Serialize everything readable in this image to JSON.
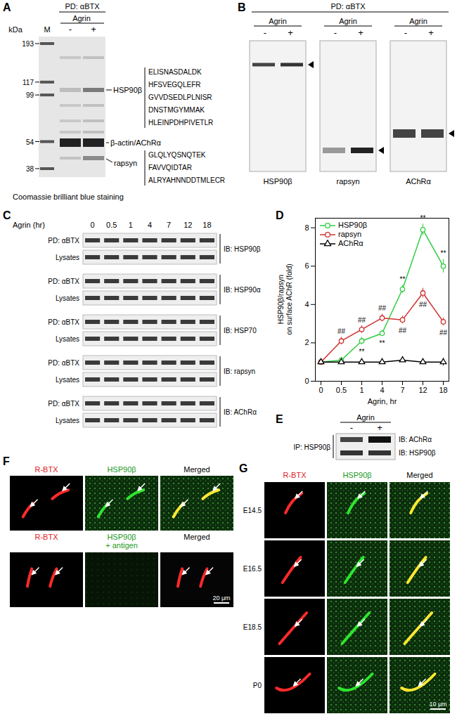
{
  "panels": {
    "A": {
      "letter": "A",
      "header": "PD: αBTX",
      "treatment": "Agrin",
      "mw_label": "kDa",
      "lanes": [
        "M",
        "-",
        "+"
      ],
      "mw_markers": [
        193,
        117,
        99,
        54,
        38
      ],
      "bands": [
        {
          "label": "HSP90β",
          "peptides": [
            "ELISNASDALDK",
            "HFSVEGQLEFR",
            "GVVDSEDLPLNISR",
            "DNSTMGYMMAK",
            "HLEINPDHPIVETLR"
          ]
        },
        {
          "label": "β-actin/AChRα"
        },
        {
          "label": "rapsyn",
          "peptides": [
            "GLQLYQSNQTEK",
            "FAVVQIDTAR",
            "ALRYAHNNDDTMLECR"
          ]
        }
      ],
      "caption": "Coomassie brilliant blue staining"
    },
    "B": {
      "letter": "B",
      "header": "PD: αBTX",
      "blots": [
        {
          "treatment": "Agrin",
          "lanes": [
            "-",
            "+"
          ],
          "label": "HSP90β"
        },
        {
          "treatment": "Agrin",
          "lanes": [
            "-",
            "+"
          ],
          "label": "rapsyn"
        },
        {
          "treatment": "Agrin",
          "lanes": [
            "-",
            "+"
          ],
          "label": "AChRα"
        }
      ]
    },
    "C": {
      "letter": "C",
      "treatment": "Agrin (hr)",
      "timepoints": [
        "0",
        "0.5",
        "1",
        "4",
        "7",
        "12",
        "18"
      ],
      "blots": [
        {
          "ib": "IB: HSP90β",
          "rows": [
            "PD: αBTX",
            "Lysates"
          ]
        },
        {
          "ib": "IB: HSP90α",
          "rows": [
            "PD: αBTX",
            "Lysates"
          ]
        },
        {
          "ib": "IB: HSP70",
          "rows": [
            "PD: αBTX",
            "Lysates"
          ]
        },
        {
          "ib": "IB: rapsyn",
          "rows": [
            "PD: αBTX",
            "Lysates"
          ]
        },
        {
          "ib": "IB: AChRα",
          "rows": [
            "PD: αBTX",
            "Lysates"
          ]
        }
      ]
    },
    "E": {
      "letter": "E",
      "treatment": "Agrin",
      "lanes": [
        "-",
        "+"
      ],
      "ip": "IP: HSP90β",
      "ib": [
        "IB: AChRα",
        "IB: HSP90β"
      ]
    },
    "F": {
      "letter": "F",
      "rows": [
        {
          "labels": [
            "R-BTX",
            "HSP90β",
            "Merged"
          ]
        },
        {
          "labels": [
            "R-BTX",
            "HSP90β\n+ antigen",
            "Merged"
          ]
        }
      ],
      "scale_bar": "20 μm"
    },
    "G": {
      "letter": "G",
      "columns": [
        "R-BTX",
        "HSP90β",
        "Merged"
      ],
      "rows": [
        "E14.5",
        "E16.5",
        "E18.5",
        "P0"
      ],
      "scale_bar": "10 μm"
    }
  },
  "chart_data": {
    "letter": "D",
    "type": "line",
    "xlabel": "Agrin, hr",
    "ylabel": "HSP90β/rapsyn\non surface AChR (fold)",
    "categories": [
      "0",
      "0.5",
      "1",
      "4",
      "7",
      "12",
      "18"
    ],
    "ylim": [
      0,
      8.5
    ],
    "yticks": [
      0,
      2,
      4,
      6,
      8
    ],
    "legend": "top-left",
    "series": [
      {
        "name": "HSP90β",
        "color": "#2ecc40",
        "marker": "circle",
        "values": [
          1,
          1.1,
          2.1,
          2.5,
          4.8,
          7.9,
          6.0
        ],
        "errors": [
          0,
          0.15,
          0.2,
          0.15,
          0.2,
          0.3,
          0.35
        ],
        "significance": [
          null,
          null,
          "**",
          "**",
          "**",
          "**",
          "**"
        ]
      },
      {
        "name": "rapsyn",
        "color": "#d03030",
        "marker": "circle",
        "values": [
          1,
          2.1,
          2.7,
          3.3,
          3.2,
          4.6,
          3.1
        ],
        "errors": [
          0,
          0.2,
          0.2,
          0.2,
          0.2,
          0.25,
          0.2
        ],
        "significance": [
          null,
          "##",
          "##",
          "##",
          "##",
          "##",
          "##"
        ]
      },
      {
        "name": "AChRα",
        "color": "#000000",
        "marker": "triangle",
        "values": [
          1,
          1.0,
          1.0,
          1.0,
          1.1,
          1.0,
          1.0
        ],
        "errors": [
          0,
          0.05,
          0.05,
          0.05,
          0.08,
          0.05,
          0.2
        ],
        "significance": [
          null,
          null,
          null,
          null,
          null,
          null,
          null
        ]
      }
    ]
  }
}
